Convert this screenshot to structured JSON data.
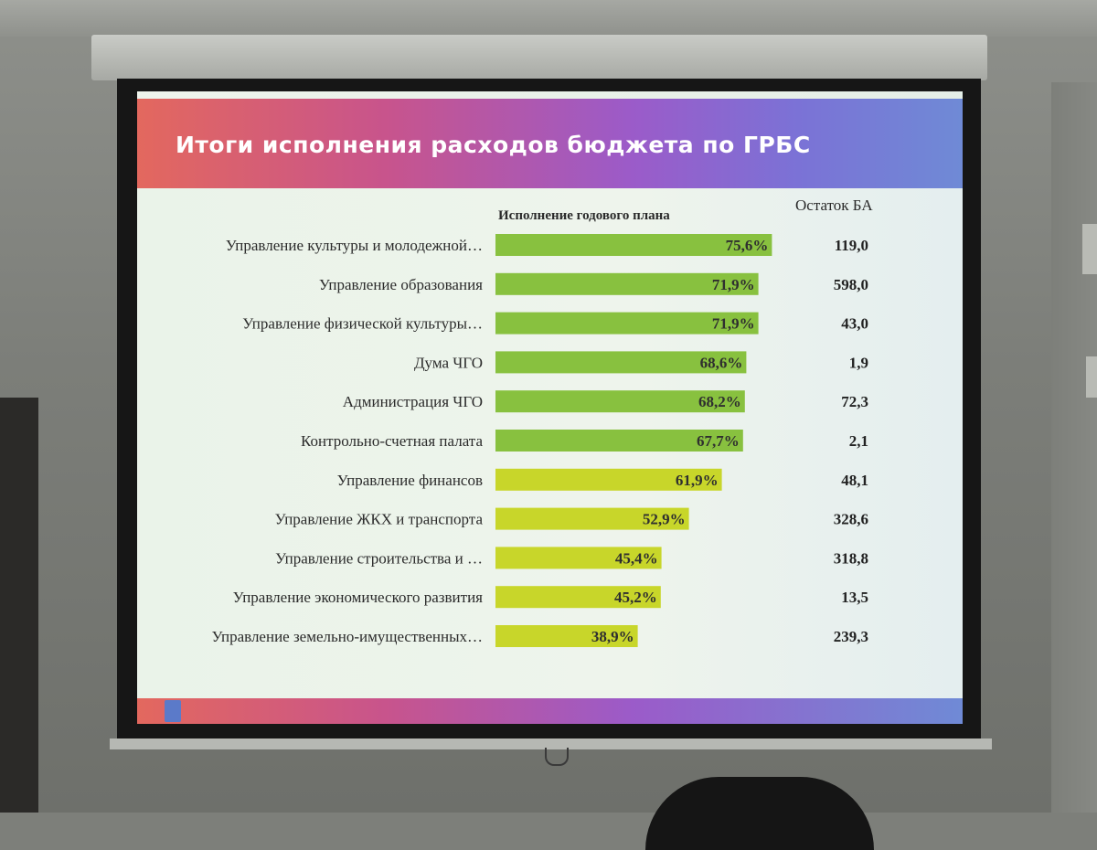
{
  "slide": {
    "title": "Итоги исполнения расходов бюджета по ГРБС",
    "plan_header": "Исполнение годового плана",
    "rest_header": "Остаток БА"
  },
  "colors": {
    "bar_high": "#88c13f",
    "bar_low": "#c8d62a"
  },
  "chart_data": {
    "type": "bar",
    "orientation": "horizontal",
    "title": "Итоги исполнения расходов бюджета по ГРБС",
    "xlabel": "",
    "ylabel": "",
    "xlim": [
      0,
      80
    ],
    "grid": false,
    "categories": [
      "Управление культуры и молодежной…",
      "Управление образования",
      "Управление физической культуры…",
      "Дума ЧГО",
      "Администрация ЧГО",
      "Контрольно-счетная палата",
      "Управление финансов",
      "Управление ЖКХ и транспорта",
      "Управление строительства и …",
      "Управление экономического развития",
      "Управление земельно-имущественных…"
    ],
    "series": [
      {
        "name": "Исполнение годового плана",
        "values": [
          75.6,
          71.9,
          71.9,
          68.6,
          68.2,
          67.7,
          61.9,
          52.9,
          45.4,
          45.2,
          38.9
        ],
        "value_labels": [
          "75,6%",
          "71,9%",
          "71,9%",
          "68,6%",
          "68,2%",
          "67,7%",
          "61,9%",
          "52,9%",
          "45,4%",
          "45,2%",
          "38,9%"
        ]
      },
      {
        "name": "Остаток БА",
        "values": [
          119.0,
          598.0,
          43.0,
          1.9,
          72.3,
          2.1,
          48.1,
          328.6,
          318.8,
          13.5,
          239.3
        ],
        "value_labels": [
          "119,0",
          "598,0",
          "43,0",
          "1,9",
          "72,3",
          "2,1",
          "48,1",
          "328,6",
          "318,8",
          "13,5",
          "239,3"
        ]
      }
    ],
    "color_threshold": 65
  }
}
